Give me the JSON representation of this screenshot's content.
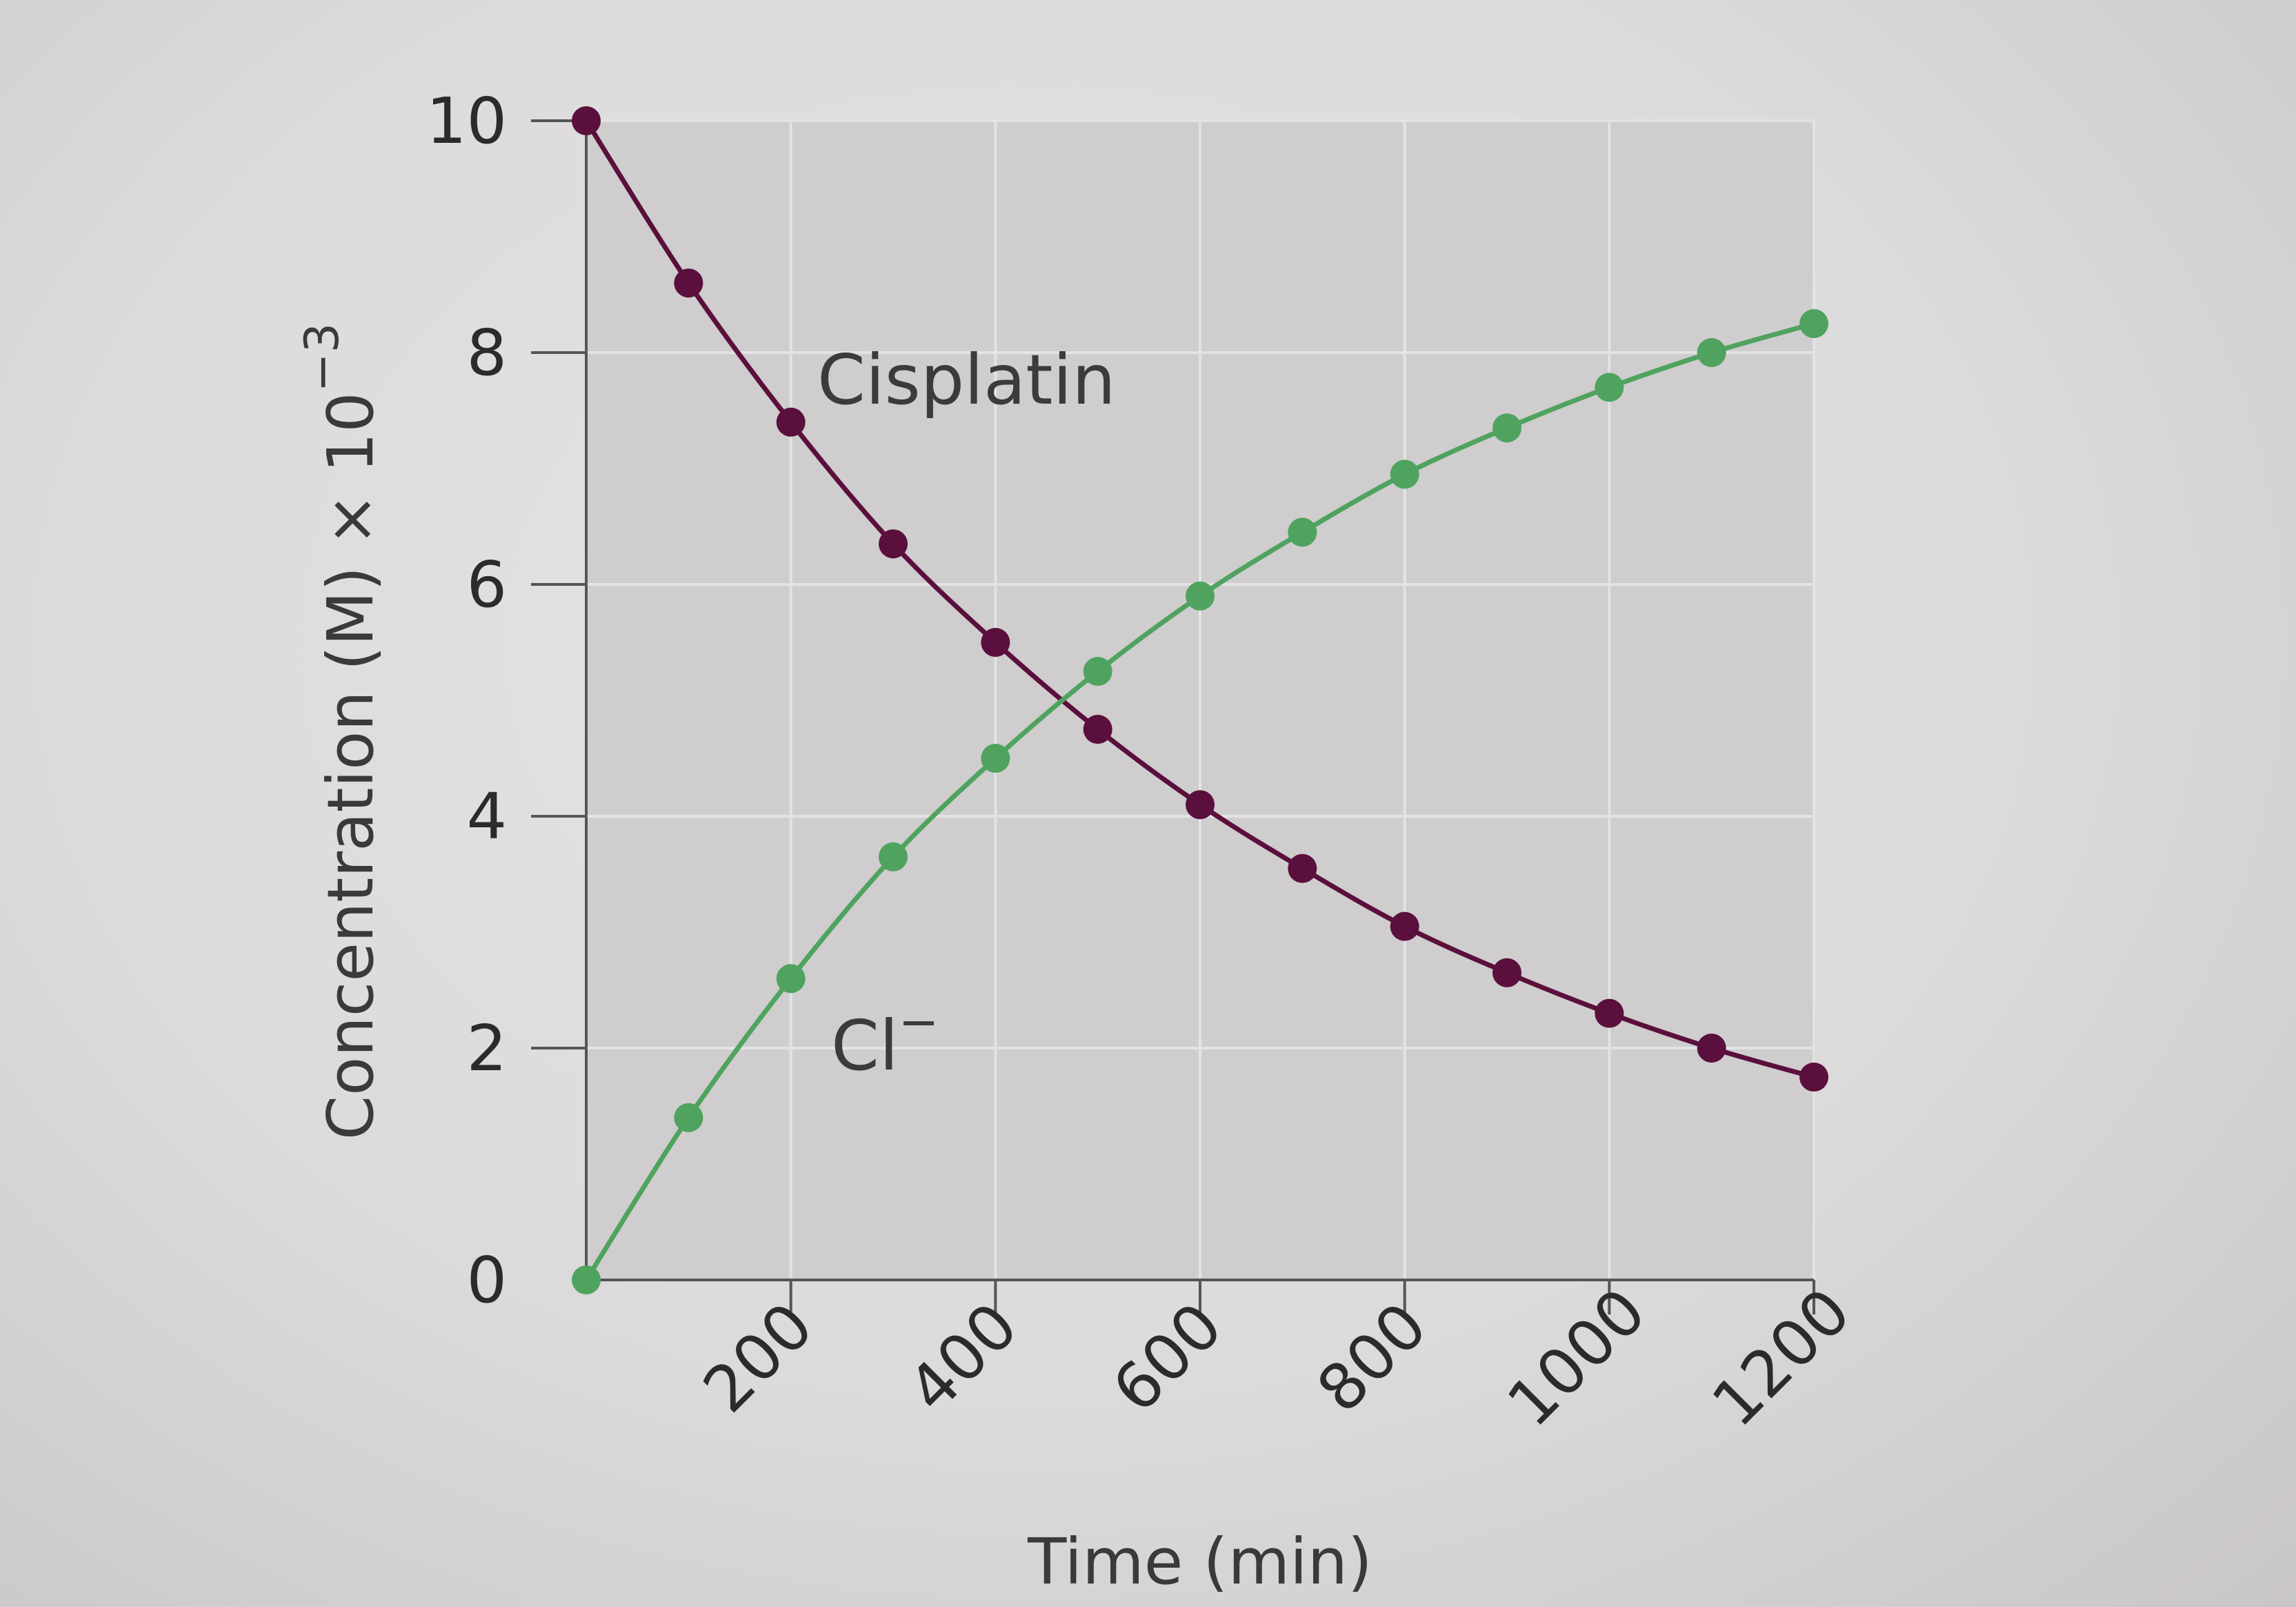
{
  "chart_data": {
    "type": "line",
    "xlabel": "Time (min)",
    "ylabel": "Concentration (M) × 10",
    "ylabel_exponent": "−3",
    "xlim": [
      0,
      1200
    ],
    "ylim": [
      0,
      10
    ],
    "x_ticks": [
      200,
      400,
      600,
      800,
      1000,
      1200
    ],
    "y_ticks": [
      0,
      2,
      4,
      6,
      8,
      10
    ],
    "grid": true,
    "legend": "none",
    "series": [
      {
        "name": "Cisplatin",
        "color": "#5a0f3c",
        "x": [
          0,
          100,
          200,
          300,
          400,
          500,
          600,
          700,
          800,
          900,
          1000,
          1100,
          1200
        ],
        "values": [
          10.0,
          8.6,
          7.4,
          6.35,
          5.5,
          4.75,
          4.1,
          3.55,
          3.05,
          2.65,
          2.3,
          2.0,
          1.75
        ]
      },
      {
        "name": "Cl",
        "name_superscript": "−",
        "color": "#4fa35e",
        "x": [
          0,
          100,
          200,
          300,
          400,
          500,
          600,
          700,
          800,
          900,
          1000,
          1100,
          1200
        ],
        "values": [
          0.0,
          1.4,
          2.6,
          3.65,
          4.5,
          5.25,
          5.9,
          6.45,
          6.95,
          7.35,
          7.7,
          8.0,
          8.25
        ]
      }
    ]
  }
}
